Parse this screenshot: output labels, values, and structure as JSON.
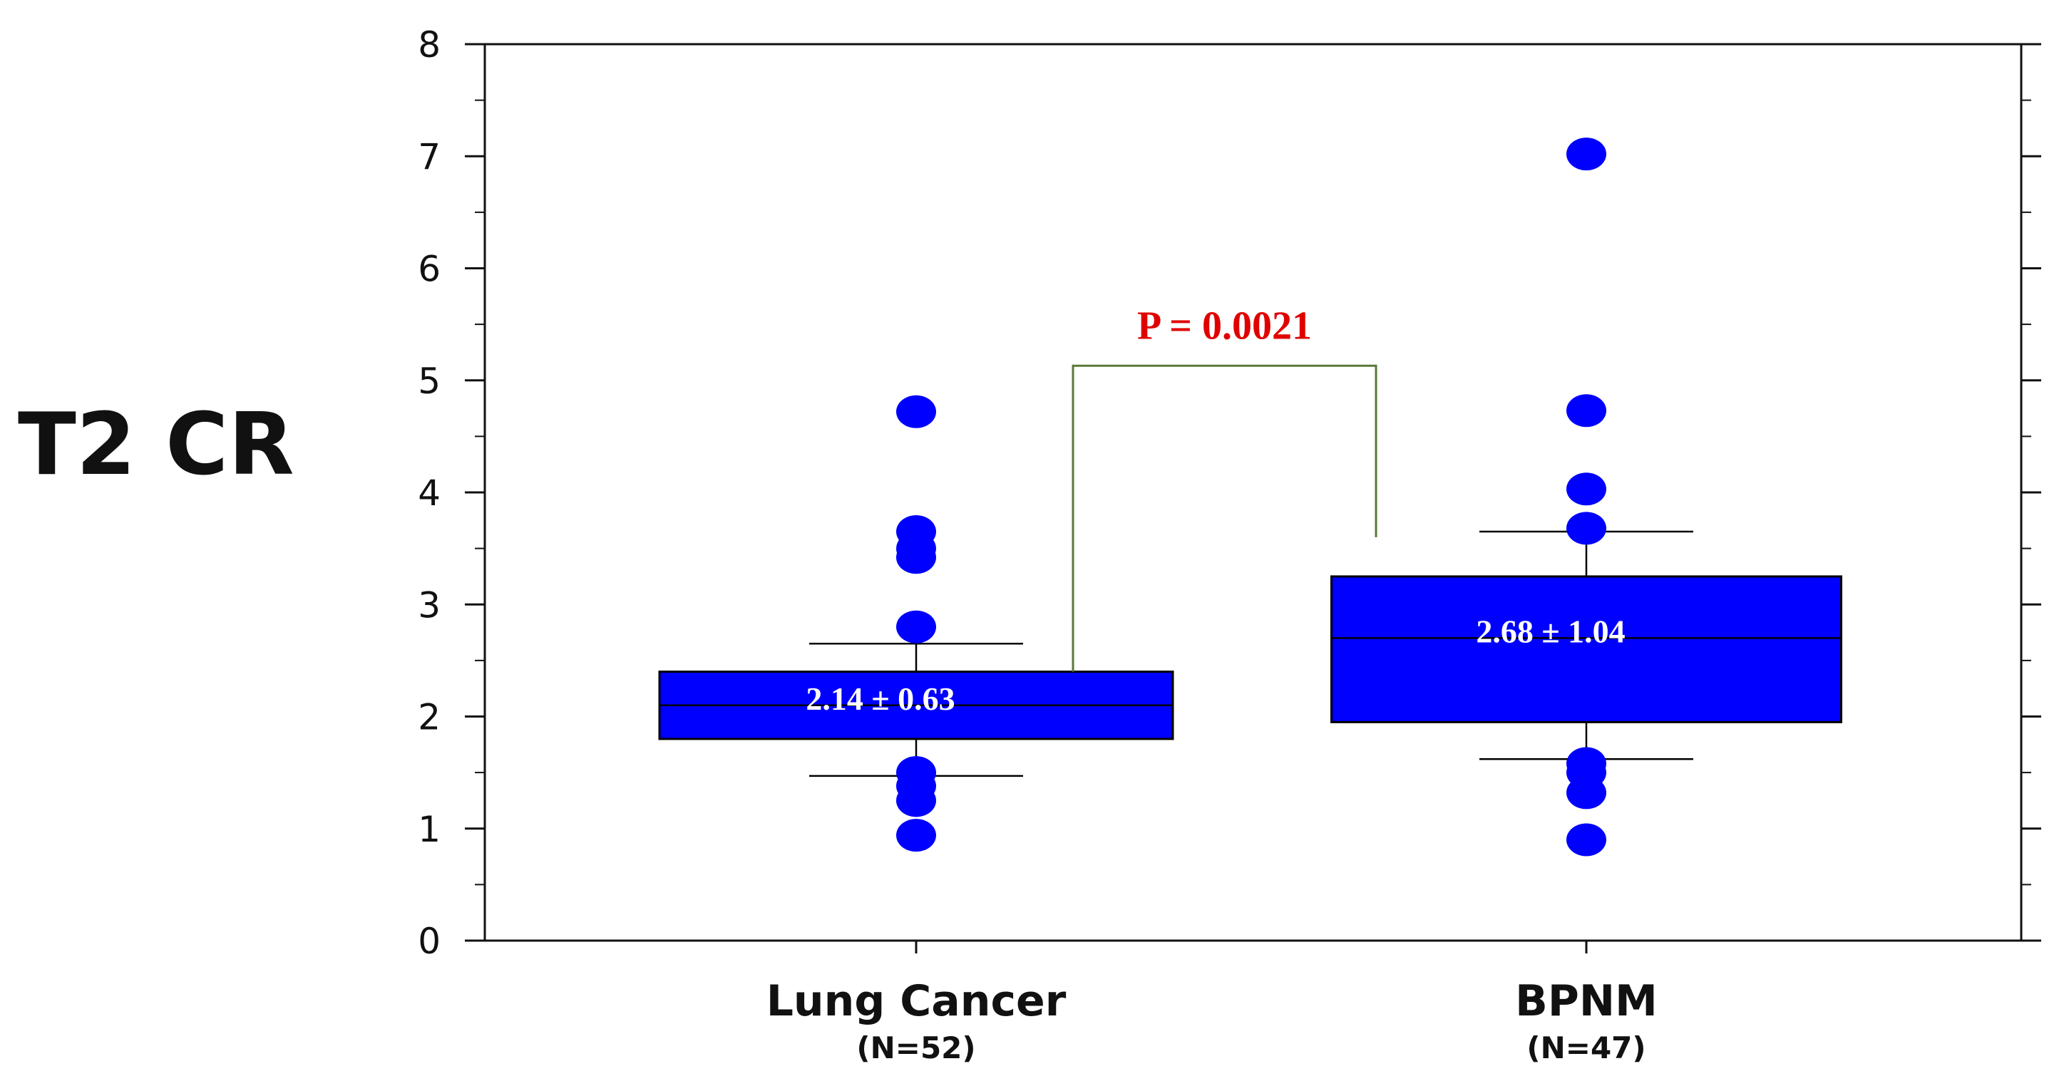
{
  "chart_data": {
    "type": "box",
    "title": "",
    "ylabel": "T2 CR",
    "xlabel": "",
    "ylim": [
      0,
      8
    ],
    "yticks": [
      0,
      1,
      2,
      3,
      4,
      5,
      6,
      7,
      8
    ],
    "ytick_labels": [
      "0",
      "1",
      "2",
      "3",
      "4",
      "5",
      "6",
      "7",
      "8"
    ],
    "grid": false,
    "categories": [
      "Lung Cancer",
      "BPNM"
    ],
    "category_n": [
      "(N=52)",
      "(N=47)"
    ],
    "boxes": [
      {
        "category": "Lung Cancer",
        "n_label": "(N=52)",
        "q1": 1.8,
        "median": 2.1,
        "q3": 2.4,
        "whisker_low": 1.47,
        "whisker_high": 2.65,
        "mean_sd_label": "2.14 ± 0.63",
        "outliers": [
          4.72,
          3.65,
          3.5,
          3.42,
          2.8,
          1.5,
          1.38,
          1.25,
          0.94
        ]
      },
      {
        "category": "BPNM",
        "n_label": "(N=47)",
        "q1": 1.95,
        "median": 2.7,
        "q3": 3.25,
        "whisker_low": 1.62,
        "whisker_high": 3.65,
        "mean_sd_label": "2.68 ± 1.04",
        "outliers": [
          7.02,
          4.73,
          4.03,
          3.68,
          1.58,
          1.5,
          1.32,
          0.9
        ]
      }
    ],
    "significance": {
      "label": "P = 0.0021",
      "between": [
        "Lung Cancer",
        "BPNM"
      ],
      "bracket_top": 5.13,
      "left_end": 2.4,
      "right_end": 3.6
    },
    "colors": {
      "box_fill": "#0000ff",
      "box_stroke": "#000000",
      "point": "#0000ff",
      "pvalue_text": "#e00000",
      "bracket": "#5a7a3a",
      "axis": "#111111",
      "box_label": "#ffffff"
    }
  }
}
